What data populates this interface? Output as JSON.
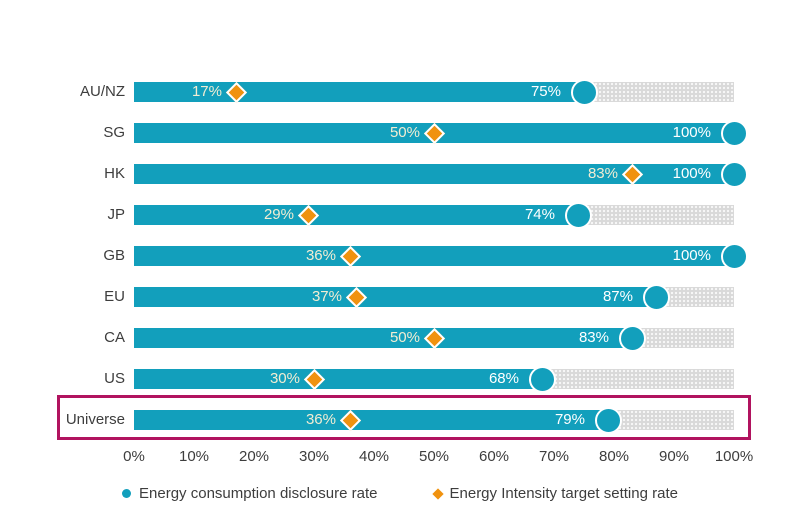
{
  "chart_data": {
    "type": "bar",
    "orientation": "horizontal",
    "title": "",
    "categories": [
      "AU/NZ",
      "SG",
      "HK",
      "JP",
      "GB",
      "EU",
      "CA",
      "US",
      "Universe"
    ],
    "series": [
      {
        "name": "Energy consumption disclosure rate",
        "marker": "circle",
        "color": "#129fbc",
        "values": [
          75,
          100,
          100,
          74,
          100,
          87,
          83,
          68,
          79
        ],
        "value_labels": [
          "75%",
          "100%",
          "100%",
          "74%",
          "100%",
          "87%",
          "83%",
          "68%",
          "79%"
        ]
      },
      {
        "name": "Energy Intensity target setting rate",
        "marker": "diamond",
        "color": "#f0920f",
        "values": [
          17,
          50,
          83,
          29,
          36,
          37,
          50,
          30,
          36
        ],
        "value_labels": [
          "17%",
          "50%",
          "83%",
          "29%",
          "36%",
          "37%",
          "50%",
          "30%",
          "36%"
        ]
      }
    ],
    "highlighted_category": "Universe",
    "x_ticks": [
      "0%",
      "10%",
      "20%",
      "30%",
      "40%",
      "50%",
      "60%",
      "70%",
      "80%",
      "90%",
      "100%"
    ],
    "xlim": [
      0,
      100
    ],
    "xlabel": "",
    "ylabel": "",
    "grid": false,
    "legend_position": "bottom"
  },
  "colors": {
    "bar": "#129fbc",
    "diamond": "#f0920f",
    "track": "#d9d9d9",
    "highlight_border": "#b1135f",
    "bar_label_text": "#ffffff",
    "target_label_text": "#f2edd3",
    "axis_text": "#3d3d3d"
  },
  "legend": {
    "items": [
      {
        "label": "Energy consumption disclosure rate"
      },
      {
        "label": "Energy Intensity target setting rate"
      }
    ]
  }
}
